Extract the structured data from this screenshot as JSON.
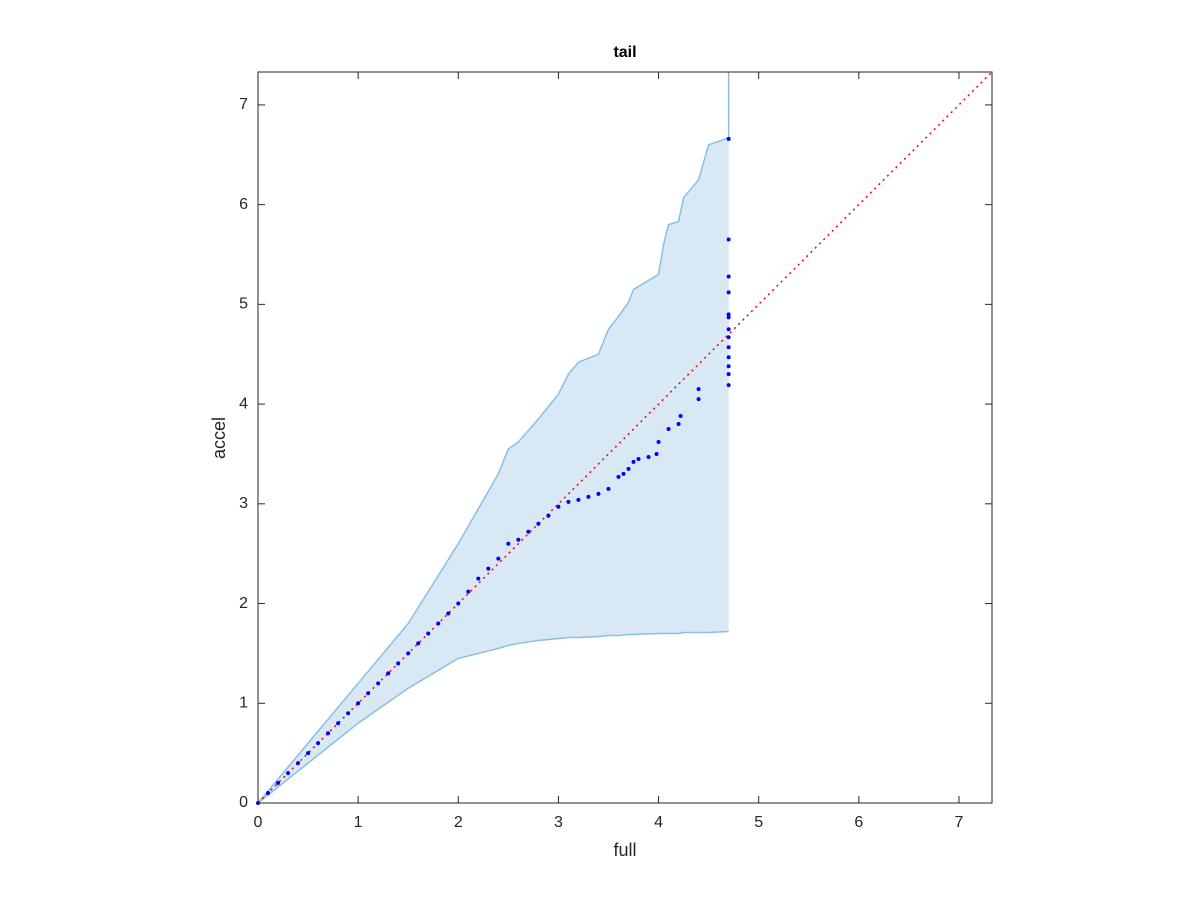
{
  "chart_data": {
    "type": "scatter",
    "title": "tail",
    "x_label": "full",
    "y_label": "accel",
    "xlim": [
      0,
      7.33
    ],
    "ylim": [
      0,
      7.33
    ],
    "xticks": [
      0,
      1,
      2,
      3,
      4,
      5,
      6,
      7
    ],
    "yticks": [
      0,
      1,
      2,
      3,
      4,
      5,
      6,
      7
    ],
    "series": [
      {
        "color": "#0000ff",
        "x": [
          0,
          0.1,
          0.2,
          0.3,
          0.4,
          0.5,
          0.6,
          0.7,
          0.8,
          0.9,
          1.0,
          1.1,
          1.2,
          1.3,
          1.4,
          1.5,
          1.6,
          1.7,
          1.8,
          1.9,
          2.0,
          2.1,
          2.2,
          2.3,
          2.4,
          2.5,
          2.6,
          2.7,
          2.8,
          2.9,
          3.0,
          3.1,
          3.2,
          3.3,
          3.4,
          3.5,
          3.6,
          3.65,
          3.7,
          3.75,
          3.8,
          3.9,
          3.98,
          4.0,
          4.1,
          4.2,
          4.22,
          4.4,
          4.4,
          4.7,
          4.7,
          4.7,
          4.7,
          4.7,
          4.7,
          4.7,
          4.7,
          4.7,
          4.7,
          4.7,
          4.7,
          4.7
        ],
        "values": [
          0,
          0.1,
          0.2,
          0.3,
          0.4,
          0.5,
          0.6,
          0.7,
          0.8,
          0.9,
          1.0,
          1.1,
          1.2,
          1.3,
          1.4,
          1.5,
          1.6,
          1.7,
          1.8,
          1.9,
          2.0,
          2.12,
          2.25,
          2.35,
          2.45,
          2.6,
          2.64,
          2.72,
          2.8,
          2.88,
          2.97,
          3.02,
          3.04,
          3.07,
          3.1,
          3.15,
          3.27,
          3.3,
          3.35,
          3.42,
          3.45,
          3.47,
          3.5,
          3.62,
          3.75,
          3.8,
          3.88,
          4.05,
          4.15,
          4.19,
          4.3,
          4.38,
          4.47,
          4.57,
          4.67,
          4.75,
          4.87,
          4.9,
          5.12,
          5.28,
          5.65,
          6.66
        ]
      }
    ],
    "band": {
      "color": "#89bfe2",
      "fill": "#d8e8f4",
      "x": [
        0,
        0.5,
        1,
        1.5,
        2,
        2.4,
        2.5,
        2.6,
        2.8,
        3,
        3.1,
        3.2,
        3.4,
        3.5,
        3.6,
        3.7,
        3.75,
        4,
        4.05,
        4.1,
        4.2,
        4.25,
        4.4,
        4.5,
        4.7,
        4.7
      ],
      "upper": [
        0,
        0.6,
        1.2,
        1.8,
        2.6,
        3.3,
        3.55,
        3.62,
        3.85,
        4.1,
        4.3,
        4.42,
        4.5,
        4.75,
        4.88,
        5.02,
        5.15,
        5.3,
        5.6,
        5.8,
        5.83,
        6.07,
        6.25,
        6.6,
        6.67,
        7.33
      ],
      "lower": [
        0,
        0.4,
        0.8,
        1.15,
        1.45,
        1.55,
        1.58,
        1.6,
        1.63,
        1.65,
        1.66,
        1.66,
        1.67,
        1.68,
        1.68,
        1.69,
        1.69,
        1.7,
        1.7,
        1.7,
        1.7,
        1.71,
        1.71,
        1.71,
        1.72,
        1.72
      ]
    },
    "reference_line": {
      "color": "#ff0000",
      "x": [
        0,
        7.33
      ],
      "values": [
        0,
        7.33
      ]
    }
  }
}
